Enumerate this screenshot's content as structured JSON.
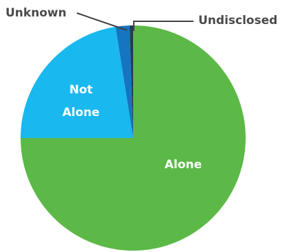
{
  "chart_data": {
    "type": "pie",
    "title": "",
    "slices": [
      {
        "label": "Alone",
        "value": 75.0,
        "color": "#5cb947"
      },
      {
        "label": "Not Alone",
        "value": 22.5,
        "color": "#19b8ef"
      },
      {
        "label": "Unknown",
        "value": 2.0,
        "color": "#1675c0"
      },
      {
        "label": "Undisclosed",
        "value": 0.5,
        "color": "#2a3a52"
      }
    ],
    "inside_labels": {
      "alone": "Alone",
      "not_alone_line1": "Not",
      "not_alone_line2": "Alone"
    },
    "outside_labels": {
      "unknown": "Unknown",
      "undisclosed": "Undisclosed"
    }
  }
}
